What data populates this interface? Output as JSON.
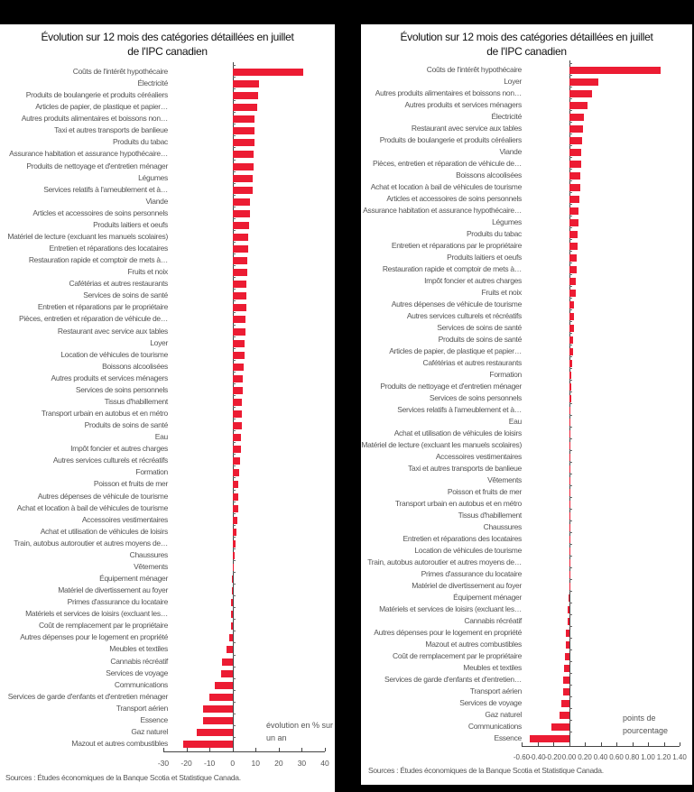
{
  "chart_data": [
    {
      "type": "bar",
      "orientation": "horizontal",
      "title": "Évolution sur 12 mois des catégories détaillées en juillet de l'IPC canadien",
      "title_lines": [
        "Évolution sur 12 mois des catégories détaillées en juillet",
        "de l'IPC canadien"
      ],
      "xlabel": "évolution en % sur un an",
      "note_lines": [
        "évolution en % sur",
        "un an"
      ],
      "xlim": [
        -30,
        40
      ],
      "xticks": [
        "-30",
        "-20",
        "-10",
        "0",
        "10",
        "20",
        "30",
        "40"
      ],
      "bar_color": "#ec1c33",
      "source": "Sources : Études économiques de la Banque Scotia et Statistique Canada.",
      "categories": [
        "Coûts de l'intérêt hypothécaire",
        "Électricité",
        "Produits de boulangerie et produits céréaliers",
        "Articles de papier, de plastique et papier…",
        "Autres produits alimentaires et boissons non…",
        "Taxi et autres transports de banlieue",
        "Produits du tabac",
        "Assurance habitation et assurance hypothécaire…",
        "Produits de nettoyage et d'entretien ménager",
        "Légumes",
        "Services relatifs à l'ameublement et à…",
        "Viande",
        "Articles et accessoires de soins personnels",
        "Produits laitiers et oeufs",
        "Matériel de lecture (excluant les manuels scolaires)",
        "Entretien et réparations des locataires",
        "Restauration rapide et comptoir de mets à…",
        "Fruits et noix",
        "Cafétérias et autres restaurants",
        "Services de soins de santé",
        "Entretien et réparations par le propriétaire",
        "Pièces, entretien et réparation de véhicule de…",
        "Restaurant avec service aux tables",
        "Loyer",
        "Location de véhicules de tourisme",
        "Boissons alcoolisées",
        "Autres produits et services ménagers",
        "Services de soins personnels",
        "Tissus d'habillement",
        "Transport urbain en autobus et en métro",
        "Produits de soins de santé",
        "Eau",
        "Impôt foncier et autres charges",
        "Autres services culturels et récréatifs",
        "Formation",
        "Poisson et fruits de mer",
        "Autres dépenses de véhicule de tourisme",
        "Achat et location à bail de véhicules de tourisme",
        "Accessoires vestimentaires",
        "Achat et utilisation de véhicules de loisirs",
        "Train, autobus autoroutier et autres moyens de…",
        "Chaussures",
        "Vêtements",
        "Équipement ménager",
        "Matériel de divertissement au foyer",
        "Primes d'assurance du locataire",
        "Matériels et services de loisirs (excluant les…",
        "Coût de remplacement par le propriétaire",
        "Autres dépenses pour le logement en propriété",
        "Meubles et textiles",
        "Cannabis récréatif",
        "Services de voyage",
        "Communications",
        "Services de garde d'enfants et d'entretien ménager",
        "Transport aérien",
        "Essence",
        "Gaz naturel",
        "Mazout et autres combustibles"
      ],
      "values": [
        30.5,
        11.5,
        11.2,
        10.8,
        9.6,
        9.5,
        9.4,
        9.3,
        9.1,
        8.9,
        8.6,
        7.7,
        7.4,
        7.1,
        6.6,
        6.6,
        6.4,
        6.3,
        6.1,
        5.9,
        5.8,
        5.7,
        5.7,
        5.3,
        5.1,
        4.8,
        4.5,
        4.3,
        4.1,
        4.0,
        3.9,
        3.8,
        3.6,
        3.4,
        2.7,
        2.5,
        2.5,
        2.3,
        2.0,
        1.6,
        1.4,
        0.8,
        0.4,
        -0.2,
        -0.4,
        -0.6,
        -0.7,
        -0.8,
        -1.3,
        -2.8,
        -4.4,
        -5.0,
        -7.9,
        -10.2,
        -12.6,
        -12.9,
        -15.6,
        -21.4
      ]
    },
    {
      "type": "bar",
      "orientation": "horizontal",
      "title": "Évolution sur 12 mois des catégories détaillées en juillet de l'IPC canadien",
      "title_lines": [
        "Évolution sur 12 mois des catégories détaillées en juillet",
        "de l'IPC canadien"
      ],
      "xlabel": "points de pourcentage",
      "note_lines": [
        "points de",
        "pourcentage"
      ],
      "xlim": [
        -0.6,
        1.4
      ],
      "xticks": [
        "-0.60",
        "-0.40",
        "-0.20",
        "0.00",
        "0.20",
        "0.40",
        "0.60",
        "0.80",
        "1.00",
        "1.20",
        "1.40"
      ],
      "bar_color": "#ec1c33",
      "source": "Sources : Études économiques de la Banque Scotia et Statistique Canada.",
      "categories": [
        "Coûts de l'intérêt hypothécaire",
        "Loyer",
        "Autres produits alimentaires et boissons non…",
        "Autres produits et services ménagers",
        "Électricité",
        "Restaurant avec service aux tables",
        "Produits de boulangerie et produits céréaliers",
        "Viande",
        "Pièces, entretien et réparation de véhicule de…",
        "Boissons alcoolisées",
        "Achat et location à bail de véhicules de tourisme",
        "Articles et accessoires de soins personnels",
        "Assurance habitation et assurance hypothécaire…",
        "Légumes",
        "Produits du tabac",
        "Entretien et réparations par le propriétaire",
        "Produits laitiers et oeufs",
        "Restauration rapide et comptoir de mets à…",
        "Impôt foncier et autres charges",
        "Fruits et noix",
        "Autres dépenses de véhicule de tourisme",
        "Autres services culturels et récréatifs",
        "Services de soins de santé",
        "Produits de soins de santé",
        "Articles de papier, de plastique et papier…",
        "Cafétérias et autres restaurants",
        "Formation",
        "Produits de nettoyage et d'entretien ménager",
        "Services de soins personnels",
        "Services relatifs à l'ameublement et à…",
        "Eau",
        "Achat et utilisation de véhicules de loisirs",
        "Matériel de lecture (excluant les manuels scolaires)",
        "Accessoires vestimentaires",
        "Taxi et autres transports de banlieue",
        "Vêtements",
        "Poisson et fruits de mer",
        "Transport urbain en autobus et en métro",
        "Tissus d'habillement",
        "Chaussures",
        "Entretien et réparations des locataires",
        "Location de véhicules de tourisme",
        "Train, autobus autoroutier et autres moyens de…",
        "Primes d'assurance du locataire",
        "Matériel de divertissement au foyer",
        "Équipement ménager",
        "Matériels et services de loisirs (excluant les…",
        "Cannabis récréatif",
        "Autres dépenses pour le logement en propriété",
        "Mazout et autres combustibles",
        "Coût de remplacement par le propriétaire",
        "Meubles et textiles",
        "Services de garde d'enfants et d'entretien…",
        "Transport aérien",
        "Services de voyage",
        "Gaz naturel",
        "Communications",
        "Essence"
      ],
      "values": [
        1.16,
        0.37,
        0.29,
        0.23,
        0.19,
        0.18,
        0.17,
        0.15,
        0.15,
        0.14,
        0.14,
        0.13,
        0.12,
        0.12,
        0.11,
        0.11,
        0.1,
        0.1,
        0.09,
        0.08,
        0.06,
        0.06,
        0.06,
        0.05,
        0.05,
        0.04,
        0.03,
        0.03,
        0.03,
        0.02,
        0.02,
        0.02,
        0.01,
        0.01,
        0.01,
        0.01,
        0.01,
        0.0,
        0.0,
        0.0,
        0.0,
        0.0,
        0.0,
        0.0,
        0.0,
        -0.01,
        -0.02,
        -0.02,
        -0.04,
        -0.04,
        -0.05,
        -0.06,
        -0.07,
        -0.08,
        -0.1,
        -0.12,
        -0.22,
        -0.5
      ]
    }
  ]
}
